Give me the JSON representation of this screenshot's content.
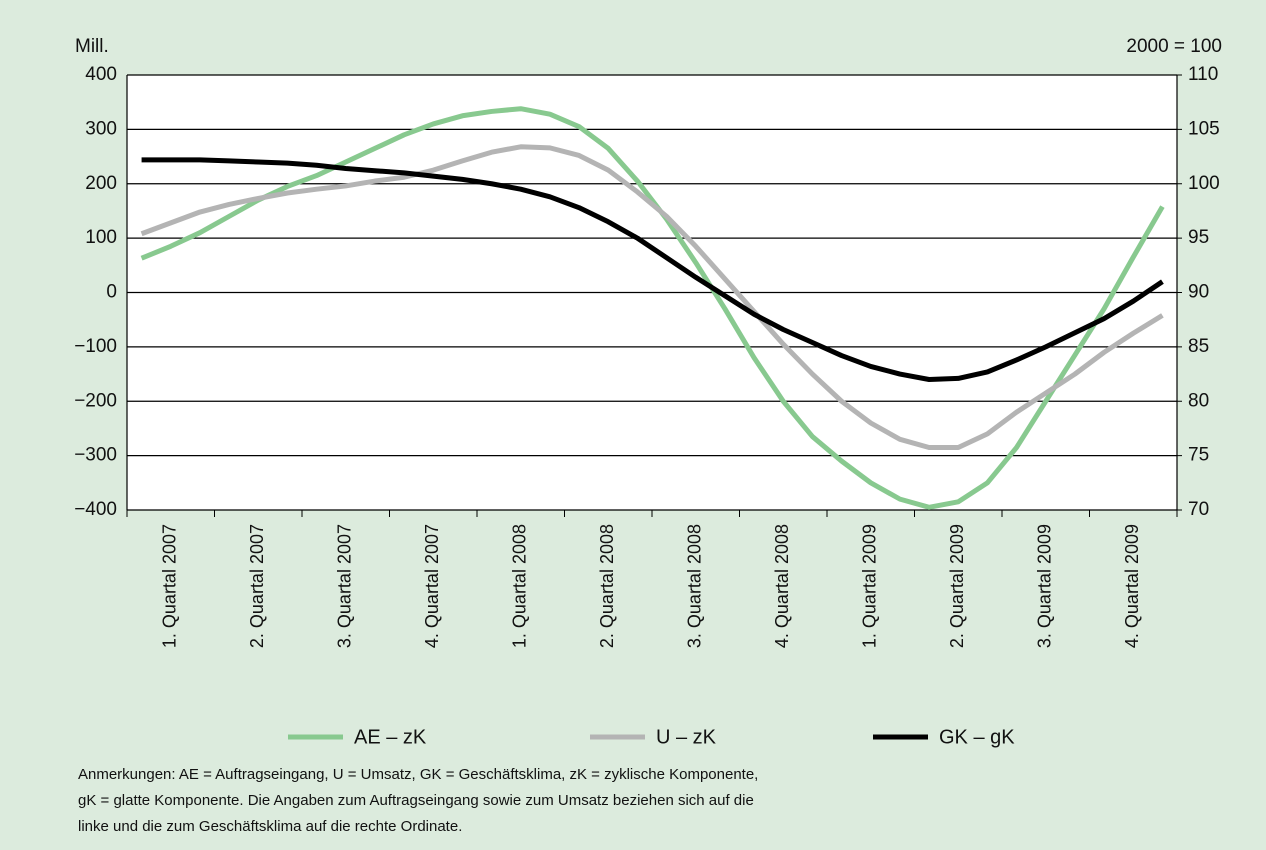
{
  "chart_data": {
    "type": "line",
    "ylabel": "Mill.",
    "y2label": "2000 = 100",
    "categories": [
      null,
      "1. Quartal 2007",
      null,
      null,
      "2. Quartal 2007",
      null,
      null,
      "3. Quartal 2007",
      null,
      null,
      "4. Quartal 2007",
      null,
      null,
      "1. Quartal 2008",
      null,
      null,
      "2. Quartal 2008",
      null,
      null,
      "3. Quartal 2008",
      null,
      null,
      "4. Quartal 2008",
      null,
      null,
      "1. Quartal 2009",
      null,
      null,
      "2. Quartal 2009",
      null,
      null,
      "3. Quartal 2009",
      null,
      null,
      "4. Quartal 2009",
      null
    ],
    "series": [
      {
        "name": "AE – zK",
        "color": "#88c98f",
        "values": [
          63,
          85,
          110,
          140,
          170,
          195,
          215,
          240,
          265,
          290,
          310,
          325,
          333,
          338,
          328,
          305,
          265,
          205,
          135,
          55,
          -30,
          -120,
          -200,
          -265,
          -310,
          -350,
          -380,
          -395,
          -385,
          -350,
          -285,
          -200,
          -115,
          -30,
          65,
          158
        ]
      },
      {
        "name": "U – zK",
        "color": "#b4b4b4",
        "values": [
          108,
          128,
          148,
          162,
          173,
          183,
          190,
          196,
          205,
          212,
          225,
          242,
          258,
          268,
          266,
          252,
          225,
          185,
          140,
          85,
          25,
          -35,
          -95,
          -150,
          -200,
          -240,
          -270,
          -285,
          -285,
          -260,
          -220,
          -185,
          -150,
          -110,
          -75,
          -42
        ]
      },
      {
        "name": "GK – gK",
        "color": "#000000",
        "axis": "y2",
        "values": [
          102.2,
          102.2,
          102.2,
          102.1,
          102.0,
          101.9,
          101.7,
          101.4,
          101.2,
          101.0,
          100.7,
          100.4,
          100.0,
          99.5,
          98.8,
          97.8,
          96.5,
          95.0,
          93.2,
          91.4,
          89.7,
          88.0,
          86.6,
          85.4,
          84.2,
          83.2,
          82.5,
          82.0,
          82.1,
          82.7,
          83.8,
          85.0,
          86.3,
          87.6,
          89.2,
          91.0
        ]
      }
    ],
    "ylim": [
      -400,
      400
    ],
    "yticks": [
      {
        "value": -400,
        "label": "−400"
      },
      {
        "value": -300,
        "label": "−300"
      },
      {
        "value": -200,
        "label": "−200"
      },
      {
        "value": -100,
        "label": "−100"
      },
      0,
      100,
      200,
      300,
      400
    ],
    "y2lim": [
      70,
      110
    ],
    "y2ticks": [
      70,
      75,
      80,
      85,
      90,
      95,
      100,
      105,
      110
    ],
    "grid": true,
    "notes": [
      "Anmerkungen: AE = Auftragseingang, U = Umsatz, GK = Geschäftsklima, zK = zyklische Komponente,",
      "gK = glatte Komponente. Die Angaben zum Auftragseingang sowie zum Umsatz beziehen sich auf die",
      "linke und die zum Geschäftsklima auf die rechte Ordinate."
    ]
  }
}
